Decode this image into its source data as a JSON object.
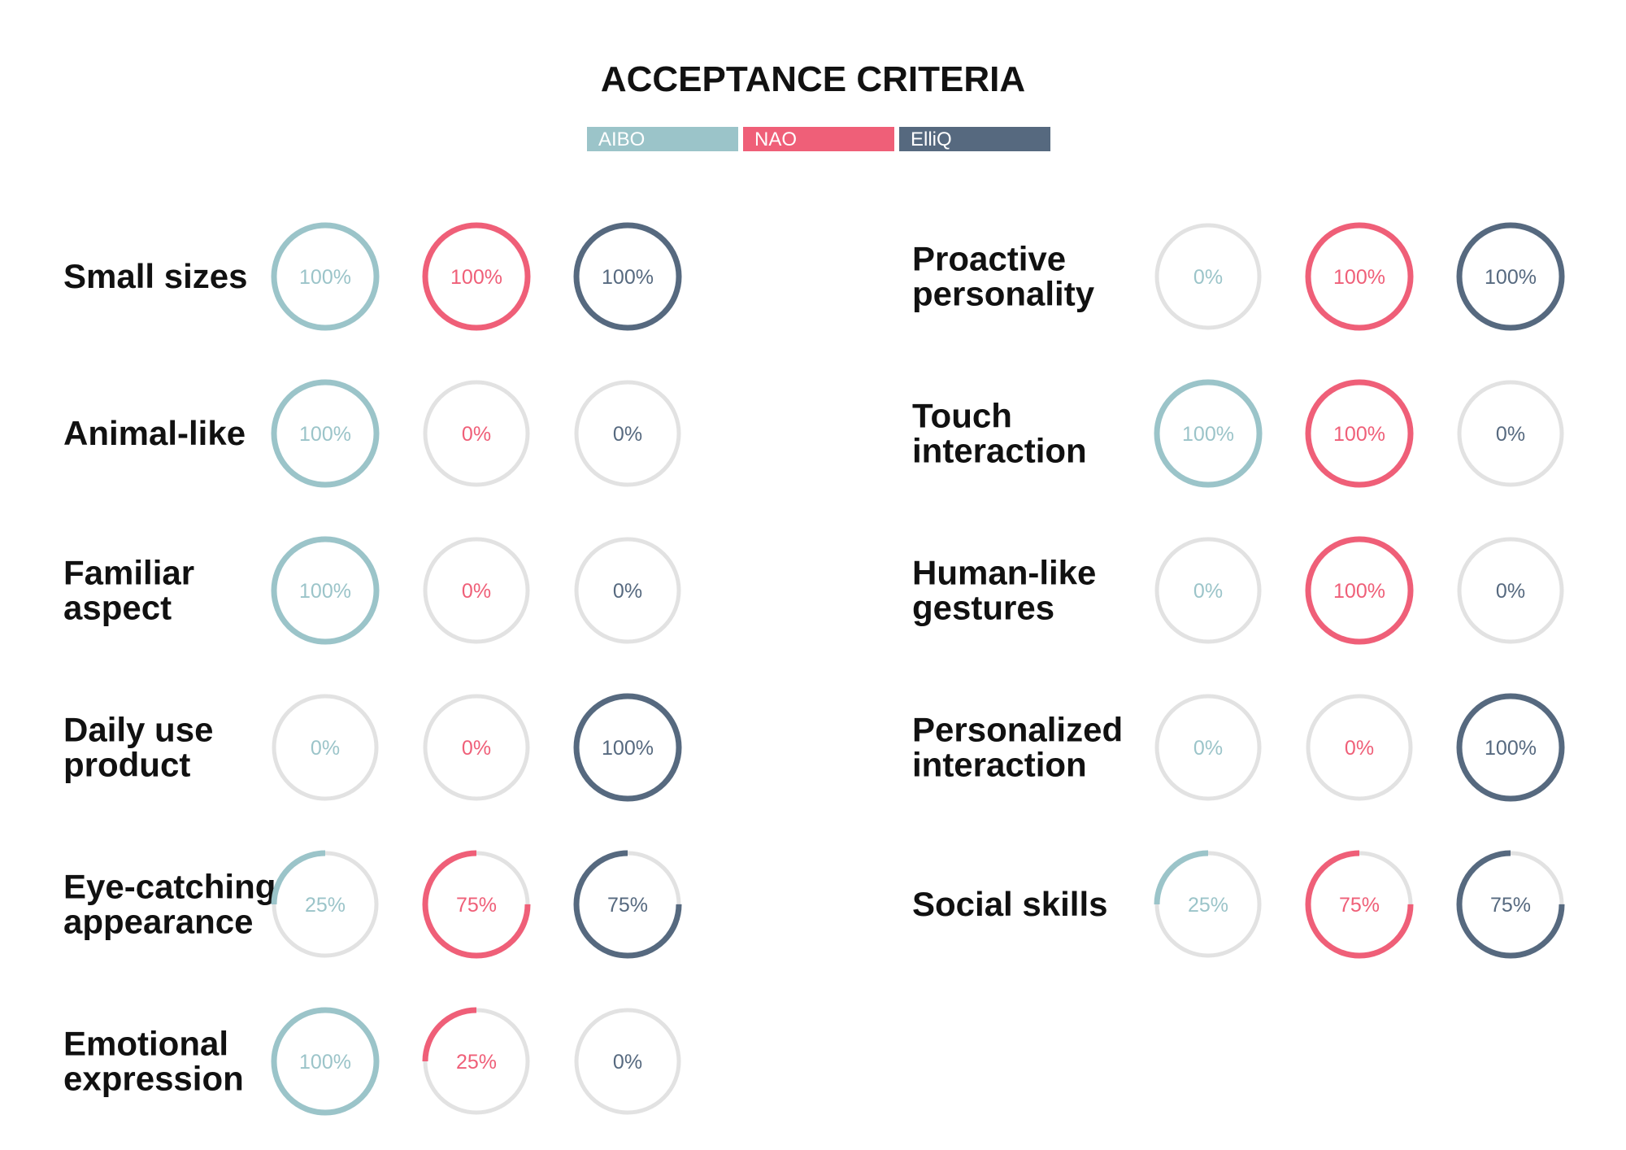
{
  "chart_data": {
    "type": "radial-progress",
    "title": "ACCEPTANCE CRITERIA",
    "series": [
      {
        "name": "AIBO",
        "color": "#9bc4c9"
      },
      {
        "name": "NAO",
        "color": "#ef5f78"
      },
      {
        "name": "ElliQ",
        "color": "#56697f"
      }
    ],
    "track_color": "#e2e2e2",
    "unit": "%",
    "columns": [
      {
        "criteria": [
          {
            "lines": [
              "Small sizes"
            ],
            "values": [
              100,
              100,
              100
            ]
          },
          {
            "lines": [
              "Animal-like"
            ],
            "values": [
              100,
              0,
              0
            ]
          },
          {
            "lines": [
              "Familiar",
              "aspect"
            ],
            "values": [
              100,
              0,
              0
            ]
          },
          {
            "lines": [
              "Daily use",
              "product"
            ],
            "values": [
              0,
              0,
              100
            ]
          },
          {
            "lines": [
              "Eye-catching",
              "appearance"
            ],
            "values": [
              25,
              75,
              75
            ]
          },
          {
            "lines": [
              "Emotional",
              "expression"
            ],
            "values": [
              100,
              25,
              0
            ]
          }
        ]
      },
      {
        "criteria": [
          {
            "lines": [
              "Proactive",
              "personality"
            ],
            "values": [
              0,
              100,
              100
            ]
          },
          {
            "lines": [
              "Touch",
              "interaction"
            ],
            "values": [
              100,
              100,
              0
            ]
          },
          {
            "lines": [
              "Human-like",
              "gestures"
            ],
            "values": [
              0,
              100,
              0
            ]
          },
          {
            "lines": [
              "Personalized",
              "interaction"
            ],
            "values": [
              0,
              0,
              100
            ]
          },
          {
            "lines": [
              "Social skills"
            ],
            "values": [
              25,
              75,
              75
            ]
          }
        ]
      }
    ]
  }
}
